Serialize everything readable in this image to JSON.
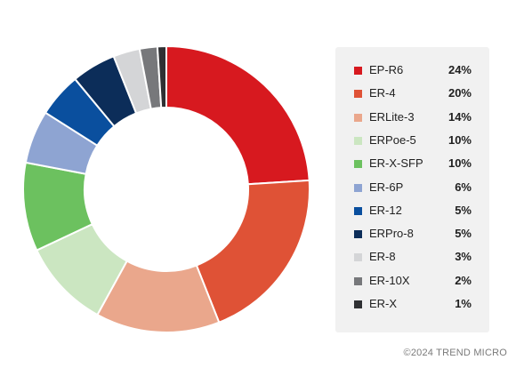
{
  "chart_data": {
    "type": "pie",
    "title": "",
    "legend_placement": "right",
    "slices": [
      {
        "label": "EP-R6",
        "value": 24,
        "display": "24%",
        "color": "#d7191f"
      },
      {
        "label": "ER-4",
        "value": 20,
        "display": "20%",
        "color": "#df5236"
      },
      {
        "label": "ERLite-3",
        "value": 14,
        "display": "14%",
        "color": "#eaa78c"
      },
      {
        "label": "ERPoe-5",
        "value": 10,
        "display": "10%",
        "color": "#cbe6c1"
      },
      {
        "label": "ER-X-SFP",
        "value": 10,
        "display": "10%",
        "color": "#6cc15f"
      },
      {
        "label": "ER-6P",
        "value": 6,
        "display": "6%",
        "color": "#8ea4d2"
      },
      {
        "label": "ER-12",
        "value": 5,
        "display": "5%",
        "color": "#0a4f9e"
      },
      {
        "label": "ERPro-8",
        "value": 5,
        "display": "5%",
        "color": "#0c2d59"
      },
      {
        "label": "ER-8",
        "value": 3,
        "display": "3%",
        "color": "#d4d5d7"
      },
      {
        "label": "ER-10X",
        "value": 2,
        "display": "2%",
        "color": "#77787b"
      },
      {
        "label": "ER-X",
        "value": 1,
        "display": "1%",
        "color": "#2f3033"
      }
    ]
  },
  "footer": {
    "copyright": "©2024 TREND MICRO"
  }
}
